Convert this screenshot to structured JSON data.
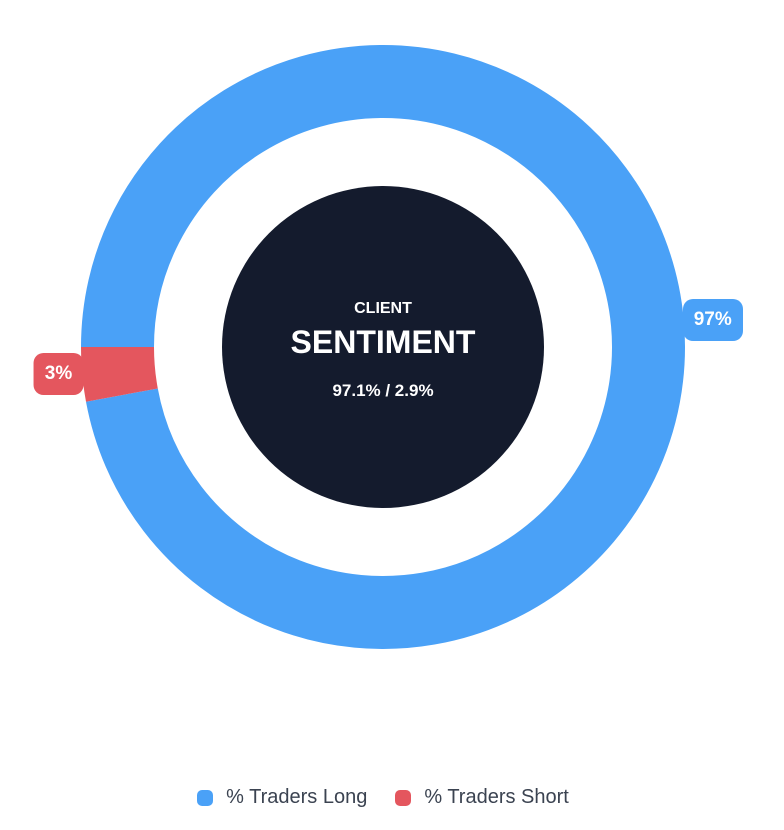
{
  "chart_data": {
    "type": "donut",
    "title": "CLIENT SENTIMENT",
    "series": [
      {
        "name": "% Traders Long",
        "value": 97.1,
        "display_label": "97%",
        "color": "#4aa1f7"
      },
      {
        "name": "% Traders Short",
        "value": 2.9,
        "display_label": "3%",
        "color": "#e4565e"
      }
    ],
    "rotation_deg_clockwise_from_top": 270,
    "direction": "clockwise",
    "inner_circle_color": "#141b2d",
    "center": {
      "line1": "CLIENT",
      "line2": "SENTIMENT",
      "line3": "97.1% / 2.9%"
    },
    "legend_position": "bottom",
    "legend_text_color": "#3b4351"
  }
}
